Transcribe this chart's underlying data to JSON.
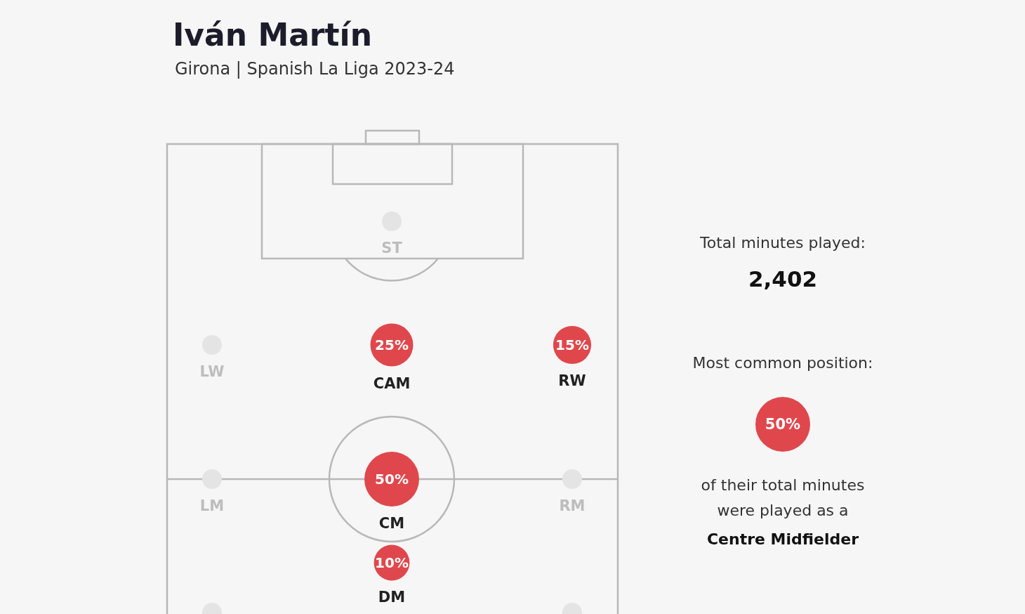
{
  "chart_data": {
    "type": "other",
    "title": "Iván Martín",
    "subtitle": "Girona | Spanish La Liga 2023-24",
    "categories": [
      "ST",
      "LW",
      "CAM",
      "RW",
      "LM",
      "CM",
      "RM",
      "DM",
      null,
      null
    ],
    "values": [
      null,
      null,
      25,
      15,
      null,
      50,
      null,
      10,
      null,
      null
    ],
    "value_labels": [
      null,
      null,
      "25%",
      "15%",
      null,
      "50%",
      null,
      "10%",
      null,
      null
    ],
    "color": "#e0474c",
    "annotations": [
      "Total minutes played:",
      "2,402",
      "Most common position:",
      "50%",
      "of their total minutes were played as a",
      "Centre Midfielder"
    ]
  }
}
